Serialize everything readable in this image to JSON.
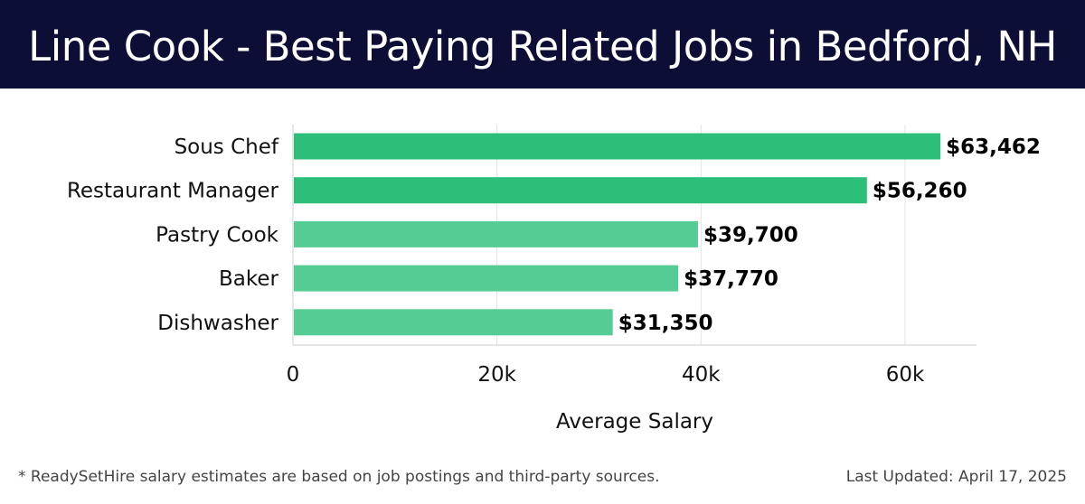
{
  "header": {
    "title": "Line Cook - Best Paying Related Jobs in Bedford, NH",
    "background": "#0c0e36"
  },
  "chart_data": {
    "type": "bar",
    "orientation": "horizontal",
    "categories": [
      "Sous Chef",
      "Restaurant Manager",
      "Pastry Cook",
      "Baker",
      "Dishwasher"
    ],
    "values": [
      63462,
      56260,
      39700,
      37770,
      31350
    ],
    "value_labels": [
      "$63,462",
      "$56,260",
      "$39,700",
      "$37,770",
      "$31,350"
    ],
    "colors": [
      "#2bbf7a",
      "#2bbf7a",
      "#55cc94",
      "#55cc94",
      "#55cc94"
    ],
    "xlabel": "Average Salary",
    "xlim": [
      0,
      67000
    ],
    "xticks": [
      0,
      20000,
      40000,
      60000
    ],
    "xtick_labels": [
      "0",
      "20k",
      "40k",
      "60k"
    ],
    "grid": true
  },
  "footer": {
    "note": "* ReadySetHire salary estimates are based on job postings and third-party sources.",
    "updated": "Last Updated: April 17, 2025"
  }
}
